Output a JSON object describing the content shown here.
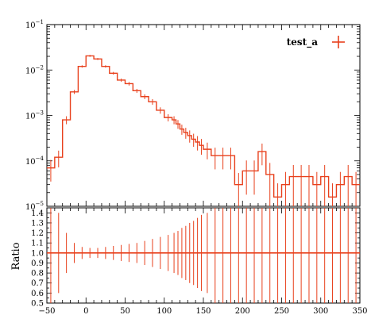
{
  "chart_data": [
    {
      "type": "line",
      "panel": "main",
      "series_name": "test_a",
      "y_scale": "log",
      "xlim": [
        -50,
        350
      ],
      "ylim": [
        1e-05,
        0.1
      ],
      "y_ticks": [
        1e-05,
        0.0001,
        0.001,
        0.01,
        0.1
      ],
      "y_tick_labels": [
        {
          "base": "10",
          "exp": "−5"
        },
        {
          "base": "10",
          "exp": "−4"
        },
        {
          "base": "10",
          "exp": "−3"
        },
        {
          "base": "10",
          "exp": "−2"
        },
        {
          "base": "10",
          "exp": "−1"
        }
      ],
      "bin_edges": [
        -50,
        -40,
        -30,
        -20,
        -10,
        0,
        10,
        20,
        30,
        40,
        50,
        60,
        70,
        80,
        90,
        100,
        110,
        115,
        120,
        125,
        130,
        135,
        140,
        145,
        150,
        160,
        170,
        180,
        190,
        200,
        210,
        220,
        230,
        240,
        250,
        260,
        270,
        280,
        290,
        300,
        310,
        320,
        330,
        340,
        350
      ],
      "values": [
        7e-05,
        0.00012,
        0.0008,
        0.0033,
        0.012,
        0.0205,
        0.0175,
        0.012,
        0.0085,
        0.006,
        0.005,
        0.0035,
        0.0026,
        0.002,
        0.0013,
        0.0009,
        0.0008,
        0.00065,
        0.0005,
        0.00042,
        0.00036,
        0.0003,
        0.00026,
        0.00022,
        0.00018,
        0.00013,
        0.00013,
        0.00013,
        3e-05,
        6e-05,
        6e-05,
        0.00016,
        5e-05,
        1.6e-05,
        3e-05,
        4.5e-05,
        4.5e-05,
        4.5e-05,
        3e-05,
        4.5e-05,
        1.6e-05,
        3e-05,
        4.5e-05,
        3e-05
      ],
      "errors_rel": [
        0.5,
        0.4,
        0.2,
        0.1,
        0.06,
        0.05,
        0.05,
        0.06,
        0.07,
        0.08,
        0.09,
        0.1,
        0.12,
        0.14,
        0.16,
        0.18,
        0.2,
        0.22,
        0.25,
        0.27,
        0.3,
        0.32,
        0.35,
        0.38,
        0.4,
        0.5,
        0.5,
        0.5,
        0.8,
        0.7,
        0.7,
        0.5,
        0.8,
        1.0,
        0.9,
        0.8,
        0.8,
        0.8,
        0.9,
        0.8,
        1.0,
        0.9,
        0.8,
        0.9
      ]
    },
    {
      "type": "line",
      "panel": "ratio",
      "ylabel": "Ratio",
      "xlim": [
        -50,
        350
      ],
      "ylim": [
        0.5,
        1.45
      ],
      "x_ticks": [
        -50,
        0,
        50,
        100,
        150,
        200,
        250,
        300,
        350
      ],
      "x_tick_labels": [
        "−50",
        "0",
        "50",
        "100",
        "150",
        "200",
        "250",
        "300",
        "350"
      ],
      "y_ticks": [
        0.5,
        0.6,
        0.7,
        0.8,
        0.9,
        1.0,
        1.1,
        1.2,
        1.3,
        1.4
      ],
      "y_tick_labels": [
        "0.5",
        "0.6",
        "0.7",
        "0.8",
        "0.9",
        "1.0",
        "1.1",
        "1.2",
        "1.3",
        "1.4"
      ],
      "value": 1.0
    }
  ],
  "legend": {
    "label": "test_a",
    "color": "#e8401c"
  },
  "colors": {
    "series": "#e8401c",
    "axes": "#000000"
  }
}
